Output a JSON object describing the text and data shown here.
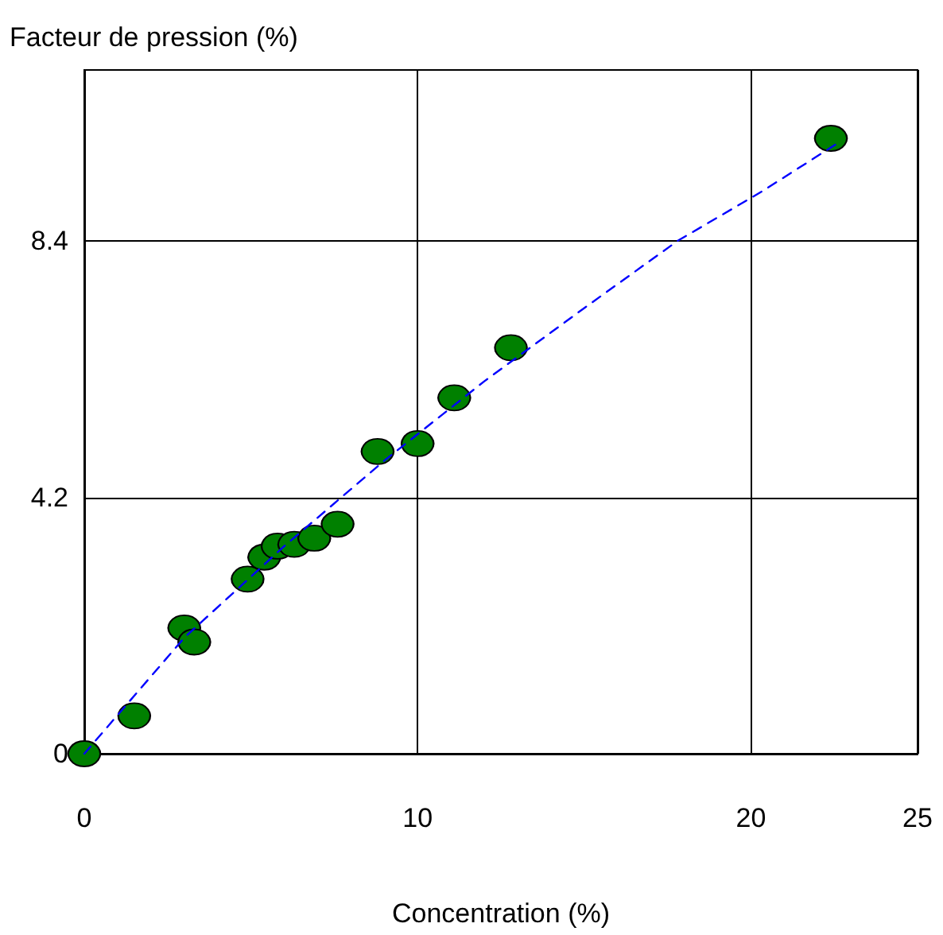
{
  "chart_data": {
    "type": "scatter",
    "xlabel": "Concentration (%)",
    "ylabel": "Facteur de pression (%)",
    "xlim": [
      0,
      25
    ],
    "xticks": [
      0,
      10,
      20,
      25
    ],
    "ylim": [
      0,
      11.2
    ],
    "yticks": [
      0,
      4.2,
      8.4
    ],
    "grid": true,
    "marker": "circle",
    "series": [
      {
        "color": "#008000",
        "x": [
          0,
          1.5,
          3.0,
          3.3,
          4.9,
          5.4,
          5.8,
          6.3,
          6.9,
          7.6,
          8.8,
          10.0,
          11.1,
          12.8,
          22.4
        ],
        "values": [
          0,
          0.62,
          2.06,
          1.83,
          2.86,
          3.22,
          3.4,
          3.43,
          3.53,
          3.76,
          4.95,
          5.08,
          5.83,
          6.65,
          10.08
        ]
      },
      {
        "type": "line",
        "color": "#0000ff",
        "line_style": "dashed",
        "marker": "none",
        "x": [
          0,
          3,
          6,
          9,
          12,
          15,
          17.8,
          20.3,
          22.6
        ],
        "values": [
          0,
          1.9,
          3.4,
          4.8,
          6.1,
          7.3,
          8.4,
          9.2,
          10.0
        ]
      }
    ]
  }
}
